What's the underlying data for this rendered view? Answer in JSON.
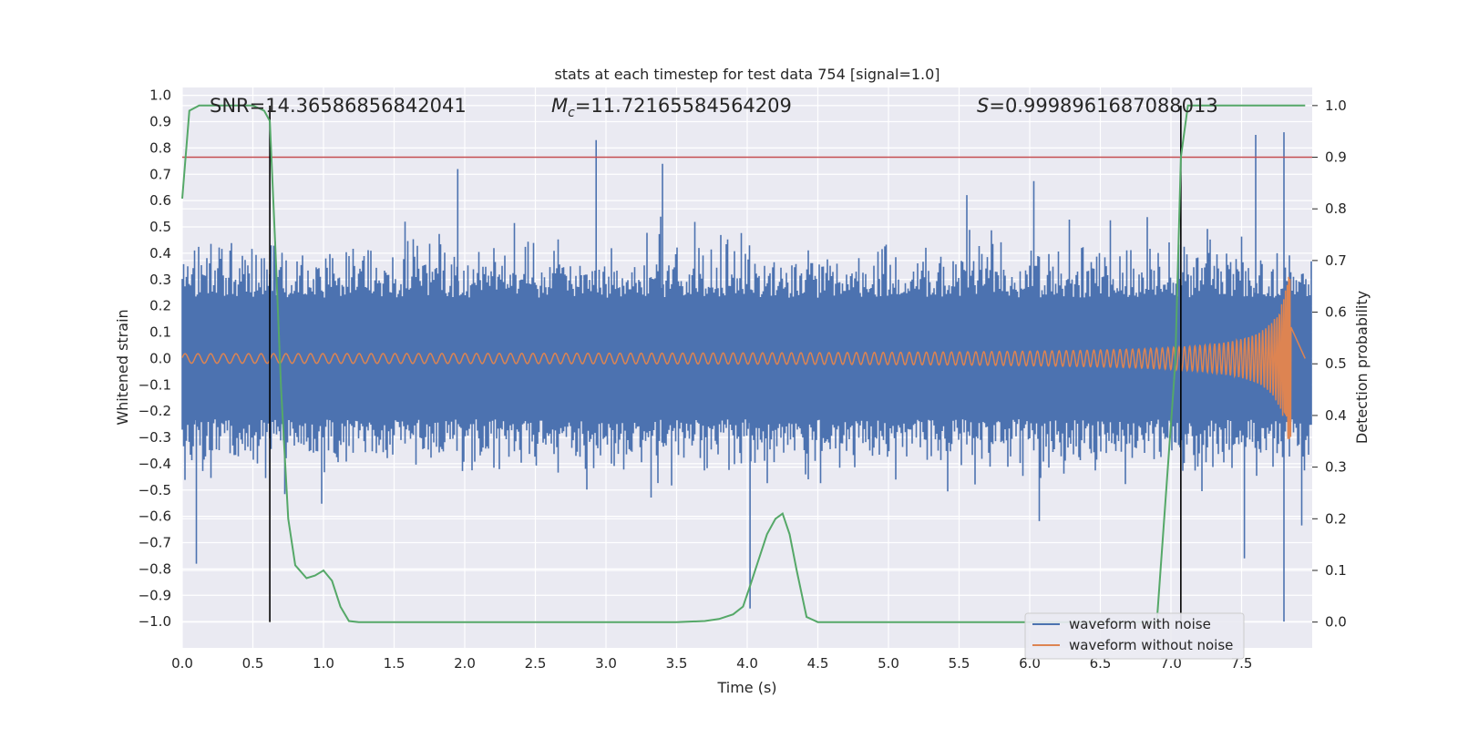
{
  "chart_data": {
    "type": "line",
    "title": "stats at each timestep for test data 754 [signal=1.0]",
    "xlabel": "Time (s)",
    "ylabel": "Whitened strain",
    "y2label": "Detection probability",
    "xlim": [
      0.0,
      8.0
    ],
    "ylim": [
      -1.1,
      1.03
    ],
    "y2lim": [
      -0.05,
      1.035
    ],
    "x_ticks": [
      "0.0",
      "0.5",
      "1.0",
      "1.5",
      "2.0",
      "2.5",
      "3.0",
      "3.5",
      "4.0",
      "4.5",
      "5.0",
      "5.5",
      "6.0",
      "6.5",
      "7.0",
      "7.5"
    ],
    "y_ticks": [
      "1.0",
      "0.9",
      "0.8",
      "0.7",
      "0.6",
      "0.5",
      "0.4",
      "0.3",
      "0.2",
      "0.1",
      "0.0",
      "−0.1",
      "−0.2",
      "−0.3",
      "−0.4",
      "−0.5",
      "−0.6",
      "−0.7",
      "−0.8",
      "−0.9",
      "−1.0"
    ],
    "y2_ticks": [
      "1.0",
      "0.9",
      "0.8",
      "0.7",
      "0.6",
      "0.5",
      "0.4",
      "0.3",
      "0.2",
      "0.1",
      "0.0"
    ],
    "grid": true,
    "legend_position": "lower-right",
    "annotations": {
      "snr": "SNR=14.36586856842041",
      "mc": "=11.72165584564209",
      "mc_symbol": "M",
      "mc_sub": "c",
      "s": "=0.9998961687088013",
      "s_symbol": "S"
    },
    "threshold": {
      "y2": 0.9,
      "color": "#c44e52"
    },
    "vlines": [
      0.62,
      7.07
    ],
    "series": [
      {
        "name": "waveform with noise",
        "color": "#4c72b0",
        "envelope_pos": 0.42,
        "envelope_neg": -0.42,
        "peak_max": 0.95,
        "peak_min": -1.0
      },
      {
        "name": "waveform without noise",
        "color": "#dd8452",
        "amp_start": 0.015,
        "amp_peak": 0.42,
        "merger_time": 7.85
      },
      {
        "name": "",
        "color": "#55a868",
        "axis": "y2",
        "x": [
          0.0,
          0.05,
          0.12,
          0.2,
          0.3,
          0.4,
          0.5,
          0.58,
          0.62,
          0.66,
          0.7,
          0.75,
          0.8,
          0.88,
          0.94,
          1.0,
          1.06,
          1.12,
          1.18,
          1.25,
          1.4,
          2.0,
          3.0,
          3.5,
          3.7,
          3.8,
          3.9,
          3.97,
          4.02,
          4.08,
          4.14,
          4.2,
          4.25,
          4.3,
          4.35,
          4.42,
          4.5,
          5.0,
          6.0,
          6.9,
          7.03,
          7.07,
          7.12,
          7.2,
          7.5,
          7.95
        ],
        "values": [
          0.82,
          0.99,
          1.0,
          1.0,
          1.0,
          1.0,
          1.0,
          0.99,
          0.97,
          0.72,
          0.45,
          0.2,
          0.11,
          0.085,
          0.09,
          0.1,
          0.08,
          0.03,
          0.002,
          0.0,
          0.0,
          0.0,
          0.0,
          0.0,
          0.002,
          0.006,
          0.015,
          0.03,
          0.07,
          0.12,
          0.17,
          0.2,
          0.21,
          0.17,
          0.1,
          0.01,
          0.0,
          0.0,
          0.0,
          0.0,
          0.5,
          0.9,
          1.0,
          1.0,
          1.0,
          1.0
        ]
      }
    ]
  }
}
